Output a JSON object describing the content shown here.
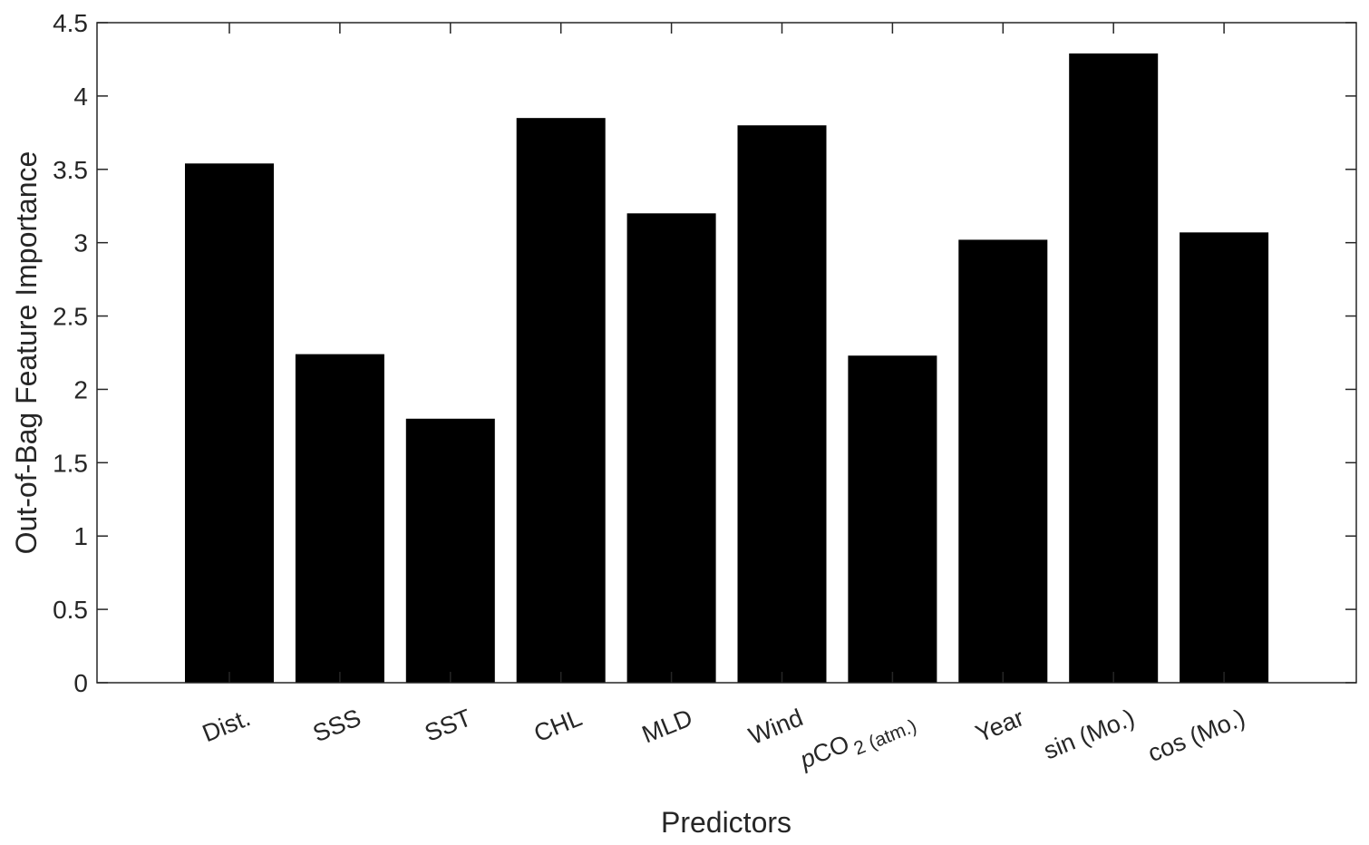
{
  "chart_data": {
    "type": "bar",
    "categories": [
      "Dist.",
      "SSS",
      "SST",
      "CHL",
      "MLD",
      "Wind",
      "pCO2 (atm.)",
      "Year",
      "sin (Mo.)",
      "cos (Mo.)"
    ],
    "category_parts": {
      "pco2_italic": "p",
      "pco2_main": "CO",
      "pco2_sub": "2 (atm.)"
    },
    "values": [
      3.54,
      2.24,
      1.8,
      3.85,
      3.2,
      3.8,
      2.23,
      3.02,
      4.29,
      3.07
    ],
    "xlabel": "Predictors",
    "ylabel": "Out-of-Bag Feature Importance",
    "ylim": [
      0,
      4.5
    ],
    "yticks": [
      0,
      0.5,
      1,
      1.5,
      2,
      2.5,
      3,
      3.5,
      4,
      4.5
    ],
    "ytick_labels": [
      "0",
      "0.5",
      "1",
      "1.5",
      "2",
      "2.5",
      "3",
      "3.5",
      "4",
      "4.5"
    ],
    "bar_color": "#000000",
    "grid": false,
    "legend": "none"
  }
}
